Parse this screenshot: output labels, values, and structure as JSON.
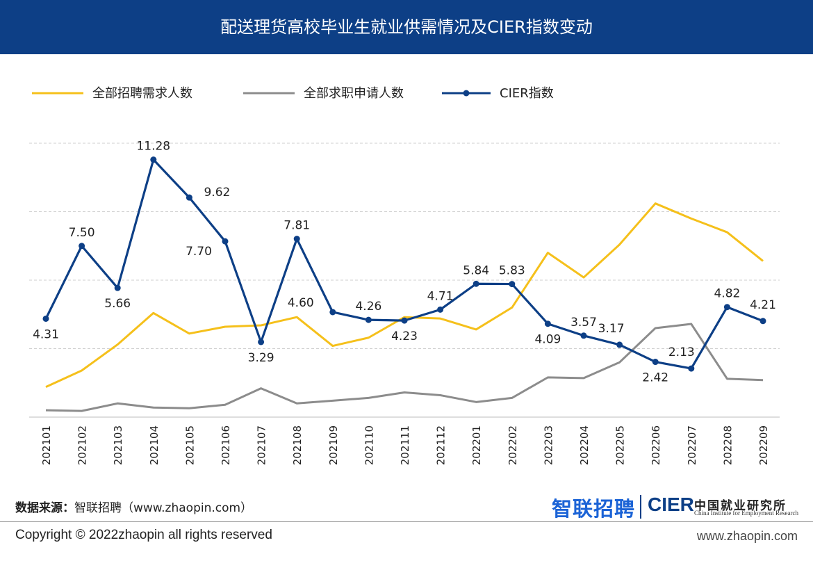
{
  "header": {
    "title": "配送理货高校毕业生就业供需情况及CIER指数变动"
  },
  "colors": {
    "header_bg": "#0d3f86",
    "demand": "#f5c01b",
    "applications": "#8c8c8c",
    "cier": "#0d3f86",
    "grid": "#cfcfcf"
  },
  "chart_data": {
    "type": "line",
    "title": "配送理货高校毕业生就业供需情况及CIER指数变动",
    "legend_position": "top-left",
    "grid": true,
    "categories": [
      "202101",
      "202102",
      "202103",
      "202104",
      "202105",
      "202106",
      "202107",
      "202108",
      "202109",
      "202110",
      "202111",
      "202112",
      "202201",
      "202202",
      "202203",
      "202204",
      "202205",
      "202206",
      "202207",
      "202208",
      "202209"
    ],
    "series": [
      {
        "name": "全部招聘需求人数",
        "axis": "secondary",
        "values": [
          2.2,
          3.4,
          5.3,
          7.6,
          6.1,
          6.6,
          6.7,
          7.3,
          5.2,
          5.8,
          7.3,
          7.2,
          6.4,
          8.0,
          12.0,
          10.2,
          12.6,
          15.6,
          14.5,
          13.5,
          11.4
        ]
      },
      {
        "name": "全部求职申请人数",
        "axis": "secondary",
        "values": [
          0.5,
          0.45,
          1.0,
          0.7,
          0.65,
          0.9,
          2.1,
          1.0,
          1.2,
          1.4,
          1.8,
          1.6,
          1.1,
          1.4,
          2.9,
          2.85,
          4.0,
          6.5,
          6.8,
          2.8,
          2.7
        ]
      },
      {
        "name": "CIER指数",
        "axis": "primary",
        "values": [
          4.31,
          7.5,
          5.66,
          11.28,
          9.62,
          7.7,
          3.29,
          7.81,
          4.6,
          4.26,
          4.23,
          4.71,
          5.84,
          5.83,
          4.09,
          3.57,
          3.17,
          2.42,
          2.13,
          4.82,
          4.21
        ],
        "labels": [
          "4.31",
          "7.50",
          "5.66",
          "11.28",
          "9.62",
          "7.70",
          "3.29",
          "7.81",
          "4.60",
          "4.26",
          "4.23",
          "4.71",
          "5.84",
          "5.83",
          "4.09",
          "3.57",
          "3.17",
          "2.42",
          "2.13",
          "4.82",
          "4.21"
        ]
      }
    ],
    "ylim": [
      0,
      12
    ],
    "y2lim": [
      0,
      20
    ]
  },
  "footer": {
    "source_label": "数据来源：",
    "source_value": "智联招聘（www.zhaopin.com）",
    "logo_zhilian": "智联招聘",
    "logo_cier": "CIER",
    "logo_cier_cn": "中国就业研究所",
    "logo_cier_en": "China Institute for Employment Research",
    "copyright": "Copyright ©  2022zhaopin all rights reserved",
    "site": "www.zhaopin.com"
  }
}
